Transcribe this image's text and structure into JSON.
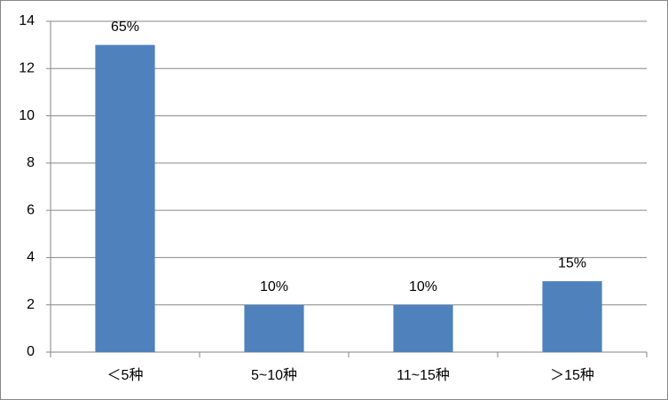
{
  "chart_data": {
    "type": "bar",
    "categories": [
      "＜5种",
      "5~10种",
      "11~15种",
      "＞15种"
    ],
    "values": [
      13,
      2,
      2,
      3
    ],
    "percent_labels": [
      "65%",
      "10%",
      "10%",
      "15%"
    ],
    "color": "#4f81bd",
    "ylim": [
      0,
      14
    ],
    "yticks": [
      0,
      2,
      4,
      6,
      8,
      10,
      12,
      14
    ],
    "grid": true
  }
}
